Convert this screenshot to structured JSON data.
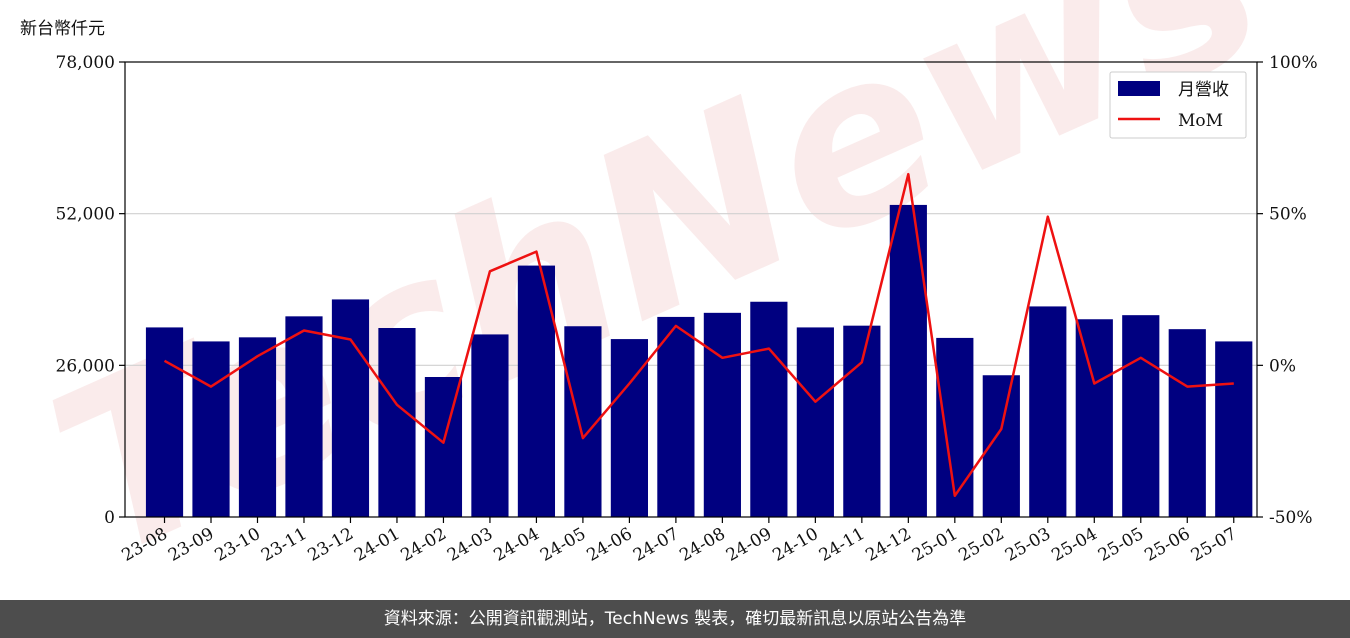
{
  "chart_data": {
    "type": "bar",
    "y_unit_label": "新台幣仟元",
    "categories": [
      "23-08",
      "23-09",
      "23-10",
      "23-11",
      "23-12",
      "24-01",
      "24-02",
      "24-03",
      "24-04",
      "24-05",
      "24-06",
      "24-07",
      "24-08",
      "24-09",
      "24-10",
      "24-11",
      "24-12",
      "25-01",
      "25-02",
      "25-03",
      "25-04",
      "25-05",
      "25-06",
      "25-07"
    ],
    "series": [
      {
        "name": "月營收",
        "type": "bar",
        "axis": "left",
        "color": "#000080",
        "values": [
          32500,
          30100,
          30800,
          34400,
          37300,
          32400,
          24000,
          31300,
          43100,
          32700,
          30500,
          34300,
          35000,
          36900,
          32500,
          32800,
          53500,
          30700,
          24300,
          36100,
          33900,
          34600,
          32200,
          30100
        ]
      },
      {
        "name": "MoM",
        "type": "line",
        "axis": "right",
        "color": "#ee1111",
        "values": [
          1.5,
          -7,
          3,
          11.5,
          8.5,
          -13,
          -25.5,
          31,
          37.5,
          -24,
          -6,
          13,
          2.5,
          5.5,
          -12,
          1,
          63,
          -43,
          -21,
          49,
          -6,
          2.5,
          -7,
          -6
        ]
      }
    ],
    "y_left": {
      "min": 0,
      "max": 78000,
      "ticks": [
        0,
        26000,
        52000,
        78000
      ],
      "tick_labels": [
        "0",
        "26,000",
        "52,000",
        "78,000"
      ]
    },
    "y_right": {
      "min": -50,
      "max": 100,
      "ticks": [
        -50,
        0,
        50,
        100
      ],
      "tick_labels": [
        "-50%",
        "0%",
        "50%",
        "100%"
      ]
    },
    "grid": "horizontal",
    "legend_position": "top-right"
  },
  "watermark": "TechNews",
  "footer": {
    "source_text": "資料來源：公開資訊觀測站，TechNews 製表，確切最新訊息以原站公告為準"
  }
}
